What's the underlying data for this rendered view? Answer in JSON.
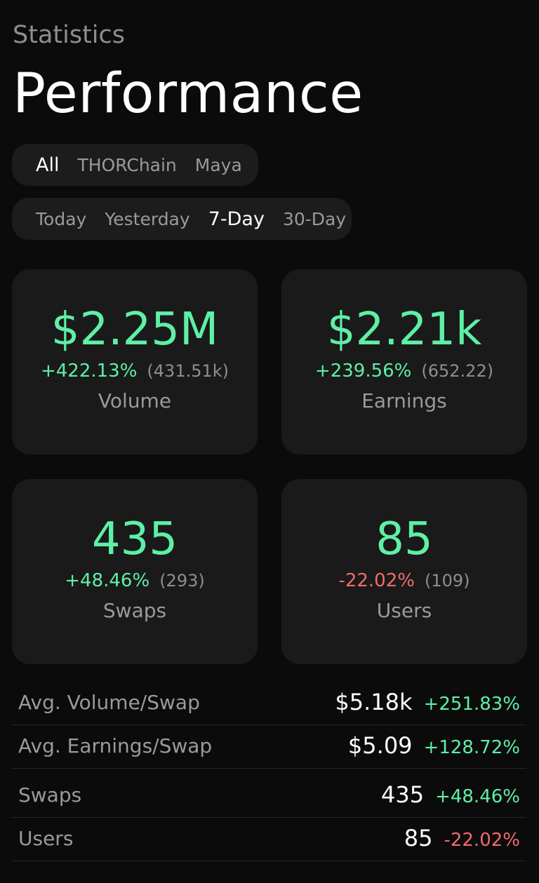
{
  "header": {
    "eyebrow": "Statistics",
    "title": "Performance"
  },
  "chain_filter": {
    "options": [
      "All",
      "THORChain",
      "Maya"
    ],
    "selected": "All"
  },
  "range_filter": {
    "options": [
      "Today",
      "Yesterday",
      "7-Day",
      "30-Day"
    ],
    "selected": "7-Day"
  },
  "cards": [
    {
      "value": "$2.25M",
      "change": "+422.13%",
      "change_dir": "up",
      "previous": "(431.51k)",
      "label": "Volume"
    },
    {
      "value": "$2.21k",
      "change": "+239.56%",
      "change_dir": "up",
      "previous": "(652.22)",
      "label": "Earnings"
    },
    {
      "value": "435",
      "change": "+48.46%",
      "change_dir": "up",
      "previous": "(293)",
      "label": "Swaps"
    },
    {
      "value": "85",
      "change": "-22.02%",
      "change_dir": "down",
      "previous": "(109)",
      "label": "Users"
    }
  ],
  "summary_rows": [
    {
      "label": "Avg. Volume/Swap",
      "value": "$5.18k",
      "change": "+251.83%",
      "change_dir": "up"
    },
    {
      "label": "Avg. Earnings/Swap",
      "value": "$5.09",
      "change": "+128.72%",
      "change_dir": "up"
    },
    {
      "label": "Swaps",
      "value": "435",
      "change": "+48.46%",
      "change_dir": "up"
    },
    {
      "label": "Users",
      "value": "85",
      "change": "-22.02%",
      "change_dir": "down"
    }
  ],
  "colors": {
    "background": "#0b0b0b",
    "card": "#1a1a1a",
    "positive": "#5ef0a6",
    "negative": "#f26a6a",
    "muted": "#9a9a9a"
  }
}
